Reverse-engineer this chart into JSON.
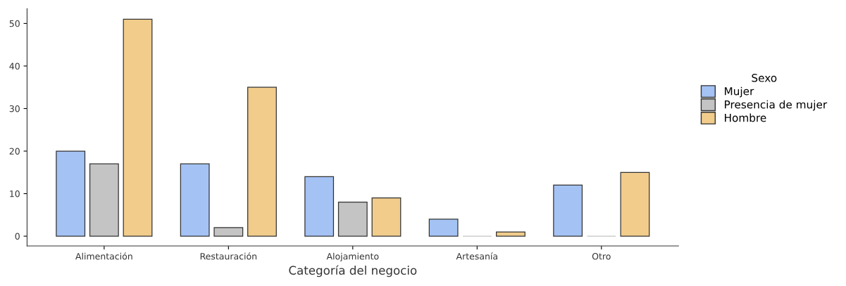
{
  "chart_data": {
    "type": "bar",
    "xlabel": "Categoría del negocio",
    "legend_title": "Sexo",
    "categories": [
      "Alimentación",
      "Restauración",
      "Alojamiento",
      "Artesanía",
      "Otro"
    ],
    "series": [
      {
        "name": "Mujer",
        "color": "#a4c2f4",
        "values": [
          20,
          17,
          14,
          4,
          12
        ]
      },
      {
        "name": "Presencia de mujer",
        "color": "#c4c4c4",
        "values": [
          17,
          2,
          8,
          0,
          0
        ]
      },
      {
        "name": "Hombre",
        "color": "#f1cc8b",
        "values": [
          51,
          35,
          9,
          1,
          15
        ]
      }
    ],
    "ylim": [
      -2.3,
      53.5
    ],
    "yticks": [
      0,
      10,
      20,
      30,
      40,
      50
    ],
    "grid": false,
    "legend": "right"
  }
}
